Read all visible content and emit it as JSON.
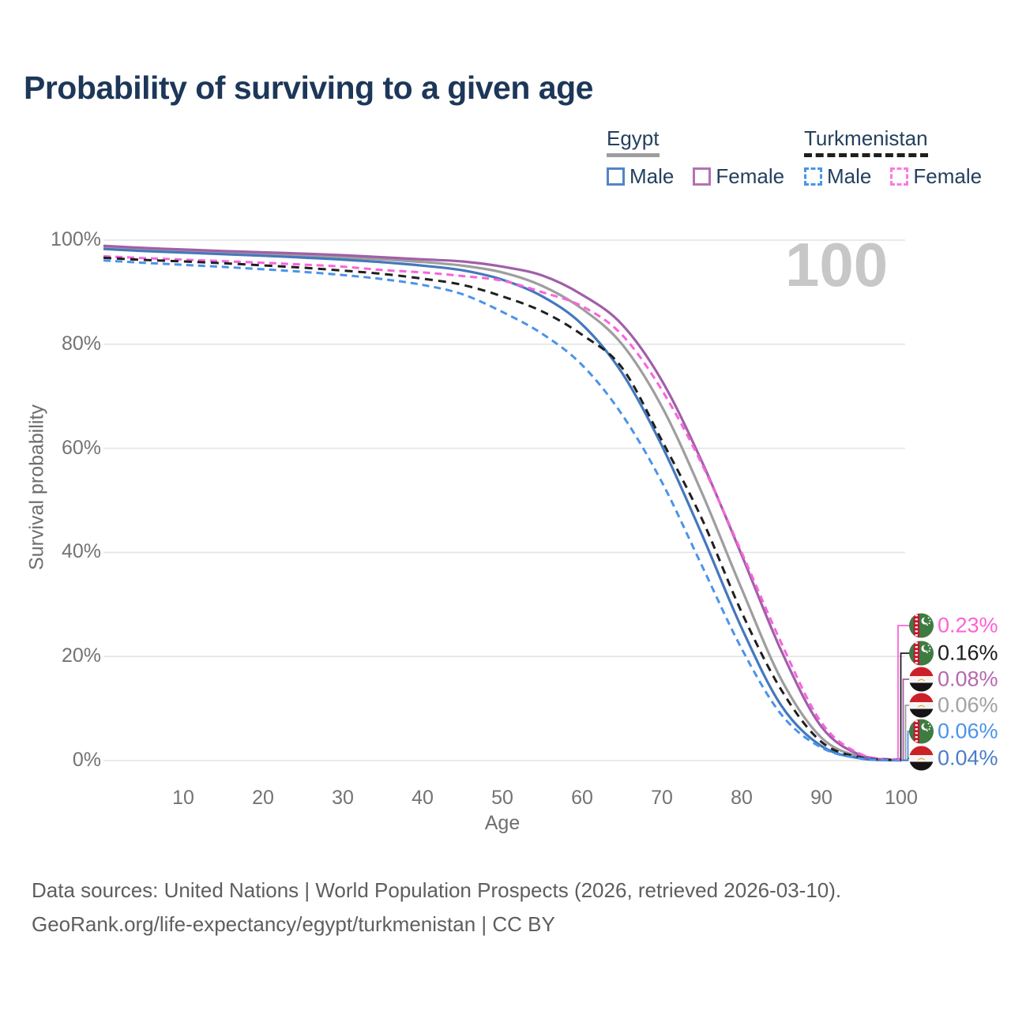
{
  "title": "Probability of surviving to a given age",
  "watermark": "100",
  "legend": {
    "egypt": {
      "label": "Egypt",
      "male": "Male",
      "female": "Female",
      "style": "solid"
    },
    "turkmenistan": {
      "label": "Turkmenistan",
      "male": "Male",
      "female": "Female",
      "style": "dashed"
    }
  },
  "axes": {
    "y_label": "Survival probability",
    "x_label": "Age",
    "y_ticks": [
      "0%",
      "20%",
      "40%",
      "60%",
      "80%",
      "100%"
    ],
    "x_ticks": [
      10,
      20,
      30,
      40,
      50,
      60,
      70,
      80,
      90,
      100
    ]
  },
  "footer": {
    "line1": "Data sources: United Nations | World Population Prospects (2026, retrieved 2026-03-10).",
    "line2": "GeoRank.org/life-expectancy/egypt/turkmenistan | CC BY"
  },
  "colors": {
    "egypt_male": "#4478bd",
    "egypt_female": "#a15fa8",
    "egypt_both": "#9e9e9e",
    "turkmenistan_male": "#4b93ea",
    "turkmenistan_both": "#1f1f1f",
    "turkmenistan_female": "#f964da",
    "grid": "#e4e4e4",
    "title_text": "#1d3759",
    "tick_text": "#737373"
  },
  "chart_data": {
    "type": "line",
    "title": "Probability of surviving to a given age",
    "xlabel": "Age",
    "ylabel": "Survival probability",
    "xlim": [
      0,
      100
    ],
    "ylim_percent": [
      0,
      100
    ],
    "grid": "horizontal",
    "legend_position": "top-right",
    "ages": [
      0,
      5,
      10,
      15,
      20,
      25,
      30,
      35,
      40,
      45,
      50,
      55,
      60,
      65,
      70,
      75,
      80,
      85,
      90,
      95,
      100
    ],
    "series": [
      {
        "id": "egypt-both",
        "name": "Egypt",
        "country": "Egypt",
        "sex": "Both",
        "style": "solid",
        "color": "#9e9e9e",
        "values": [
          98.6,
          98.25,
          98.0,
          97.65,
          97.35,
          97.05,
          96.7,
          96.3,
          95.8,
          95.1,
          93.8,
          91.2,
          86.8,
          80.0,
          68.0,
          51.5,
          33.0,
          15.5,
          4.4,
          0.7,
          0.06
        ],
        "end_label": "0.06%",
        "end_label_color": "#a2a2a2",
        "flag": "egypt"
      },
      {
        "id": "egypt-male",
        "name": "Egypt Male",
        "country": "Egypt",
        "sex": "Male",
        "style": "solid",
        "color": "#4478bd",
        "values": [
          98.3,
          97.9,
          97.6,
          97.3,
          97.0,
          96.65,
          96.25,
          95.75,
          95.1,
          94.2,
          92.4,
          89.2,
          83.8,
          74.5,
          60.5,
          43.5,
          25.5,
          10.5,
          2.8,
          0.4,
          0.04
        ],
        "end_label": "0.04%",
        "end_label_color": "#4b7dc8",
        "flag": "egypt"
      },
      {
        "id": "egypt-female",
        "name": "Egypt Female",
        "country": "Egypt",
        "sex": "Female",
        "style": "solid",
        "color": "#a15fa8",
        "values": [
          98.9,
          98.5,
          98.2,
          97.9,
          97.65,
          97.4,
          97.1,
          96.7,
          96.3,
          95.9,
          94.9,
          93.2,
          89.5,
          83.8,
          73.0,
          57.5,
          39.5,
          21.0,
          6.5,
          1.0,
          0.08
        ],
        "end_label": "0.08%",
        "end_label_color": "#b468b0",
        "flag": "egypt"
      },
      {
        "id": "turkmenistan-female",
        "name": "Turkmenistan Female",
        "country": "Turkmenistan",
        "sex": "Female",
        "style": "dashed",
        "color": "#f964da",
        "values": [
          96.9,
          96.55,
          96.25,
          95.95,
          95.65,
          95.3,
          94.9,
          94.25,
          93.8,
          93.1,
          92.2,
          90.0,
          87.3,
          81.8,
          71.2,
          57.0,
          40.0,
          22.5,
          7.3,
          1.2,
          0.23
        ],
        "end_label": "0.23%",
        "end_label_color": "#fd62d7",
        "flag": "turkmenistan"
      },
      {
        "id": "turkmenistan-both",
        "name": "Turkmenistan",
        "country": "Turkmenistan",
        "sex": "Both",
        "style": "dashed",
        "color": "#1f1f1f",
        "values": [
          96.6,
          96.2,
          95.9,
          95.55,
          95.15,
          94.7,
          94.15,
          93.5,
          92.6,
          91.4,
          89.2,
          86.3,
          81.8,
          75.5,
          61.5,
          46.5,
          28.5,
          13.5,
          3.6,
          0.6,
          0.16
        ],
        "end_label": "0.16%",
        "end_label_color": "#1c1c1c",
        "flag": "turkmenistan"
      },
      {
        "id": "turkmenistan-male",
        "name": "Turkmenistan Male",
        "country": "Turkmenistan",
        "sex": "Male",
        "style": "dashed",
        "color": "#4b93ea",
        "values": [
          96.1,
          95.65,
          95.25,
          94.85,
          94.4,
          93.9,
          93.3,
          92.5,
          91.4,
          89.6,
          86.2,
          82.0,
          76.0,
          66.5,
          53.5,
          37.5,
          21.5,
          8.8,
          2.5,
          0.4,
          0.06
        ],
        "end_label": "0.06%",
        "end_label_color": "#4b93ea",
        "flag": "turkmenistan"
      }
    ],
    "end_label_order": [
      "turkmenistan-female",
      "turkmenistan-both",
      "egypt-female",
      "egypt-both",
      "turkmenistan-male",
      "egypt-male"
    ]
  }
}
